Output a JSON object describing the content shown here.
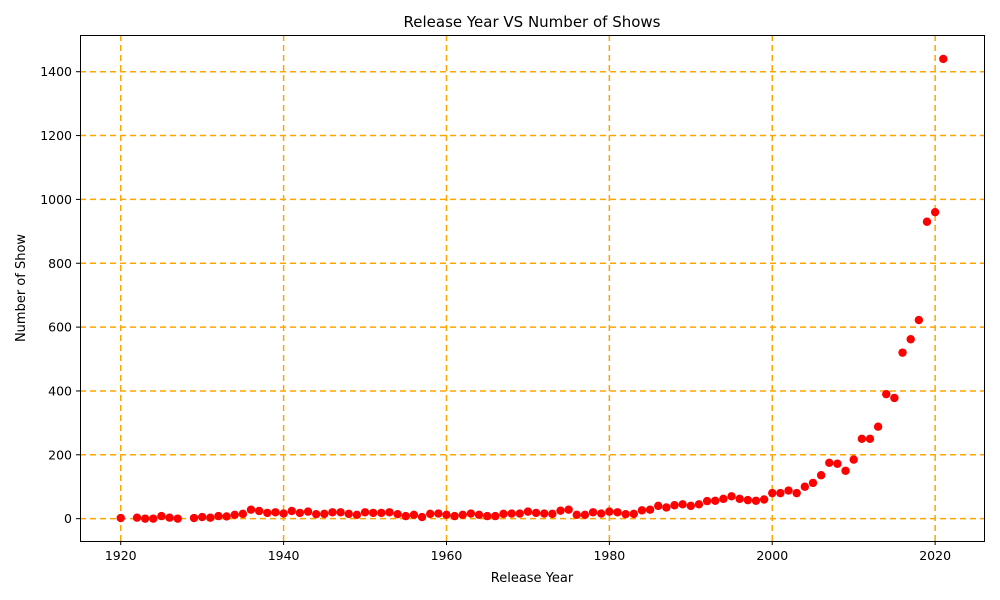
{
  "chart_data": {
    "type": "scatter",
    "title": "Release Year VS Number of Shows",
    "xlabel": "Release Year",
    "ylabel": "Number of Show",
    "xlim": [
      1915,
      2026
    ],
    "ylim": [
      -70,
      1515
    ],
    "xticks": [
      1920,
      1940,
      1960,
      1980,
      2000,
      2020
    ],
    "yticks": [
      0,
      200,
      400,
      600,
      800,
      1000,
      1200,
      1400
    ],
    "grid": true,
    "grid_color": "#ffa500",
    "marker_color": "#ff0000",
    "x": [
      1920,
      1922,
      1923,
      1924,
      1925,
      1926,
      1927,
      1929,
      1930,
      1931,
      1932,
      1933,
      1934,
      1935,
      1936,
      1937,
      1938,
      1939,
      1940,
      1941,
      1942,
      1943,
      1944,
      1945,
      1946,
      1947,
      1948,
      1949,
      1950,
      1951,
      1952,
      1953,
      1954,
      1955,
      1956,
      1957,
      1958,
      1959,
      1960,
      1961,
      1962,
      1963,
      1964,
      1965,
      1966,
      1967,
      1968,
      1969,
      1970,
      1971,
      1972,
      1973,
      1974,
      1975,
      1976,
      1977,
      1978,
      1979,
      1980,
      1981,
      1982,
      1983,
      1984,
      1985,
      1986,
      1987,
      1988,
      1989,
      1990,
      1991,
      1992,
      1993,
      1994,
      1995,
      1996,
      1997,
      1998,
      1999,
      2000,
      2001,
      2002,
      2003,
      2004,
      2005,
      2006,
      2007,
      2008,
      2009,
      2010,
      2011,
      2012,
      2013,
      2014,
      2015,
      2016,
      2017,
      2018,
      2019,
      2020,
      2021
    ],
    "y": [
      2,
      3,
      0,
      0,
      8,
      3,
      0,
      2,
      5,
      3,
      8,
      7,
      12,
      15,
      28,
      24,
      18,
      20,
      16,
      24,
      18,
      22,
      14,
      15,
      20,
      20,
      15,
      12,
      20,
      18,
      18,
      20,
      14,
      8,
      12,
      5,
      15,
      16,
      12,
      8,
      12,
      16,
      12,
      8,
      8,
      15,
      16,
      16,
      22,
      18,
      16,
      15,
      25,
      28,
      12,
      12,
      20,
      16,
      22,
      20,
      14,
      15,
      26,
      28,
      40,
      35,
      42,
      45,
      40,
      45,
      55,
      56,
      62,
      70,
      62,
      58,
      56,
      60,
      80,
      80,
      88,
      80,
      100,
      112,
      136,
      175,
      172,
      150,
      185,
      250,
      250,
      288,
      390,
      378,
      520,
      562,
      622,
      930,
      960,
      1440
    ]
  }
}
